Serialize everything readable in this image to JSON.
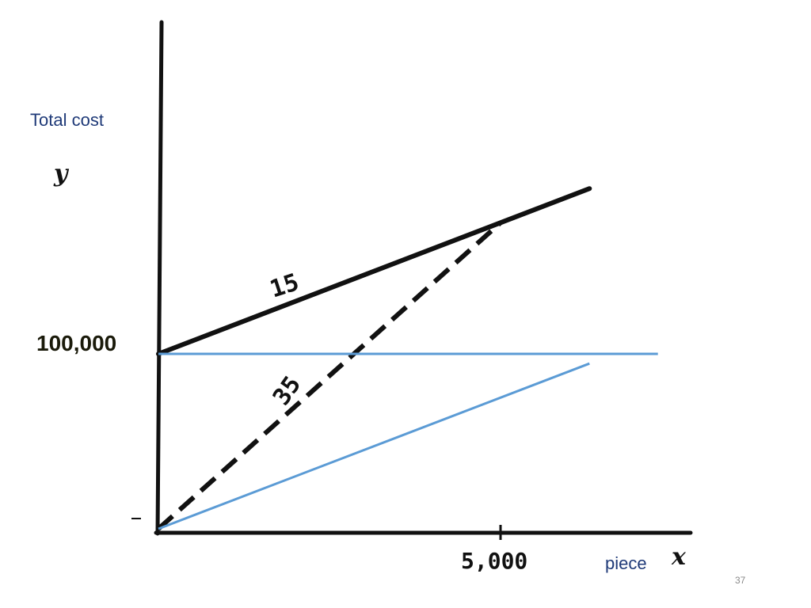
{
  "chart_data": {
    "type": "line",
    "xlabel": "piece",
    "ylabel": "Total cost",
    "x_axis_letter": "x",
    "y_axis_letter": "y",
    "xlim": [
      0,
      7000
    ],
    "ylim": [
      0,
      280000
    ],
    "x_ticks": [
      {
        "value": 5000,
        "label": "5,000"
      }
    ],
    "y_ticks": [
      {
        "value": 100000,
        "label": "100,000"
      }
    ],
    "grid": false,
    "series": [
      {
        "label": "15",
        "style": "solid",
        "color": "#111111",
        "x": [
          0,
          6300
        ],
        "y": [
          100000,
          194500
        ]
      },
      {
        "label": "35",
        "style": "dashed",
        "color": "#111111",
        "x": [
          0,
          5000
        ],
        "y": [
          0,
          175000
        ]
      },
      {
        "label": "",
        "style": "solid",
        "color": "#5b9bd5",
        "x": [
          0,
          7300
        ],
        "y": [
          100000,
          100000
        ]
      },
      {
        "label": "",
        "style": "solid",
        "color": "#5b9bd5",
        "x": [
          0,
          6300
        ],
        "y": [
          0,
          94500
        ]
      }
    ]
  },
  "page_number": "37"
}
